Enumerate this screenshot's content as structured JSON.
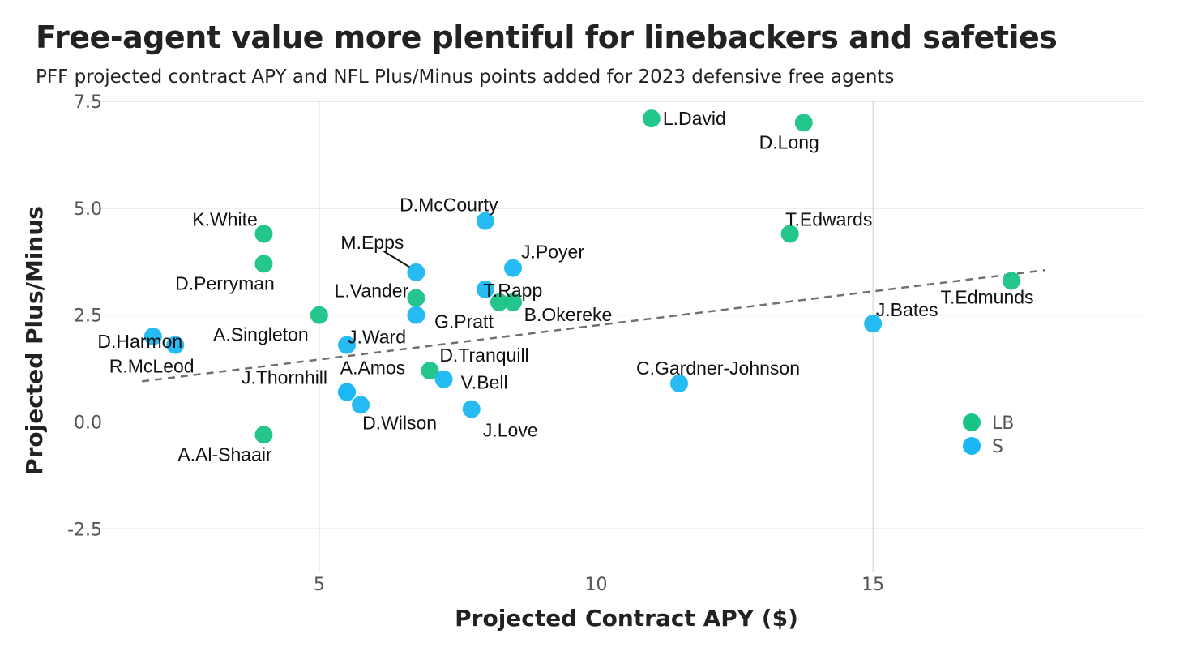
{
  "chart_data": {
    "type": "scatter",
    "title": "Free-agent value more plentiful for linebackers and safeties",
    "subtitle": "PFF projected contract APY and NFL Plus/Minus points added for 2023 defensive free agents",
    "xlabel": "Projected Contract APY ($)",
    "ylabel": "Projected Plus/Minus",
    "xlim": [
      0.7,
      19.9
    ],
    "ylim": [
      -3.5,
      7.5
    ],
    "x_ticks": [
      {
        "value": 5,
        "label": "5"
      },
      {
        "value": 10,
        "label": "10"
      },
      {
        "value": 15,
        "label": "15"
      }
    ],
    "y_ticks": [
      {
        "value": -2.5,
        "label": "-2.5"
      },
      {
        "value": 0,
        "label": "0.0"
      },
      {
        "value": 2.5,
        "label": "2.5"
      },
      {
        "value": 5,
        "label": "5.0"
      },
      {
        "value": 7.5,
        "label": "7.5"
      }
    ],
    "grid": true,
    "legend_position": "right",
    "colors": {
      "LB": "#18c386",
      "S": "#1ab8f2"
    },
    "trend_line": {
      "style": "dashed",
      "color": "#707070",
      "x": [
        1.8,
        18.1
      ],
      "y": [
        0.95,
        3.55
      ]
    },
    "series": [
      {
        "name": "LB",
        "points": [
          {
            "label": "L.David",
            "x": 11.0,
            "y": 7.1
          },
          {
            "label": "D.Long",
            "x": 13.75,
            "y": 7.0
          },
          {
            "label": "T.Edwards",
            "x": 13.5,
            "y": 4.4
          },
          {
            "label": "T.Edmunds",
            "x": 17.5,
            "y": 3.3
          },
          {
            "label": "K.White",
            "x": 4.0,
            "y": 4.4
          },
          {
            "label": "D.Perryman",
            "x": 4.0,
            "y": 3.7
          },
          {
            "label": "A.Singleton",
            "x": 5.0,
            "y": 2.5
          },
          {
            "label": "L.Vander",
            "x": 6.75,
            "y": 2.9
          },
          {
            "label": "B.Okereke",
            "x": 8.5,
            "y": 2.8
          },
          {
            "label": "",
            "x": 8.25,
            "y": 2.8
          },
          {
            "label": "D.Tranquill",
            "x": 7.0,
            "y": 1.2
          },
          {
            "label": "A.Al-Shaair",
            "x": 4.0,
            "y": -0.3
          }
        ]
      },
      {
        "name": "S",
        "points": [
          {
            "label": "D.McCourty",
            "x": 8.0,
            "y": 4.7
          },
          {
            "label": "J.Poyer",
            "x": 8.5,
            "y": 3.6
          },
          {
            "label": "M.Epps",
            "x": 6.75,
            "y": 3.5
          },
          {
            "label": "T.Rapp",
            "x": 8.0,
            "y": 3.1
          },
          {
            "label": "G.Pratt",
            "x": 6.75,
            "y": 2.5
          },
          {
            "label": "J.Ward",
            "x": 5.5,
            "y": 1.8
          },
          {
            "label": "D.Harmon",
            "x": 2.0,
            "y": 2.0
          },
          {
            "label": "R.McLeod",
            "x": 2.4,
            "y": 1.8
          },
          {
            "label": "A.Amos",
            "x": 5.5,
            "y": 0.7
          },
          {
            "label": "D.Wilson",
            "x": 5.75,
            "y": 0.4
          },
          {
            "label": "V.Bell",
            "x": 7.25,
            "y": 1.0
          },
          {
            "label": "J.Love",
            "x": 7.75,
            "y": 0.3
          },
          {
            "label": "J.Thornhill",
            "x": 5.5,
            "y": 0.7
          },
          {
            "label": "J.Bates",
            "x": 15.0,
            "y": 2.3
          },
          {
            "label": "C.Gardner-Johnson",
            "x": 11.5,
            "y": 0.9
          }
        ]
      }
    ],
    "legend": [
      {
        "name": "LB"
      },
      {
        "name": "S"
      }
    ]
  }
}
